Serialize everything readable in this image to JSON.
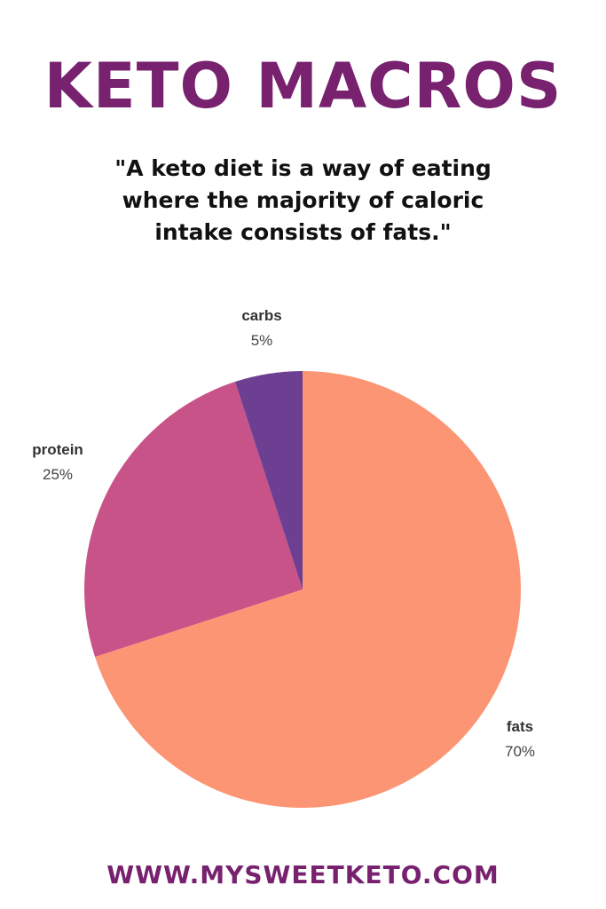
{
  "title": "KETO MACROS",
  "quote": "\"A keto diet is a way of eating where the majority of caloric intake consists of fats.\"",
  "footer": "WWW.MYSWEETKETO.COM",
  "colors": {
    "brand": "#77216f",
    "fats": "#fc9574",
    "protein": "#c85388",
    "carbs": "#6c3f92"
  },
  "chart_data": {
    "type": "pie",
    "title": "",
    "slices": [
      {
        "label": "fats",
        "value": 70,
        "display": "70%",
        "color": "#fc9574"
      },
      {
        "label": "protein",
        "value": 25,
        "display": "25%",
        "color": "#c85388"
      },
      {
        "label": "carbs",
        "value": 5,
        "display": "5%",
        "color": "#6c3f92"
      }
    ],
    "start_angle_deg": 0,
    "direction": "clockwise",
    "legend": "none"
  }
}
